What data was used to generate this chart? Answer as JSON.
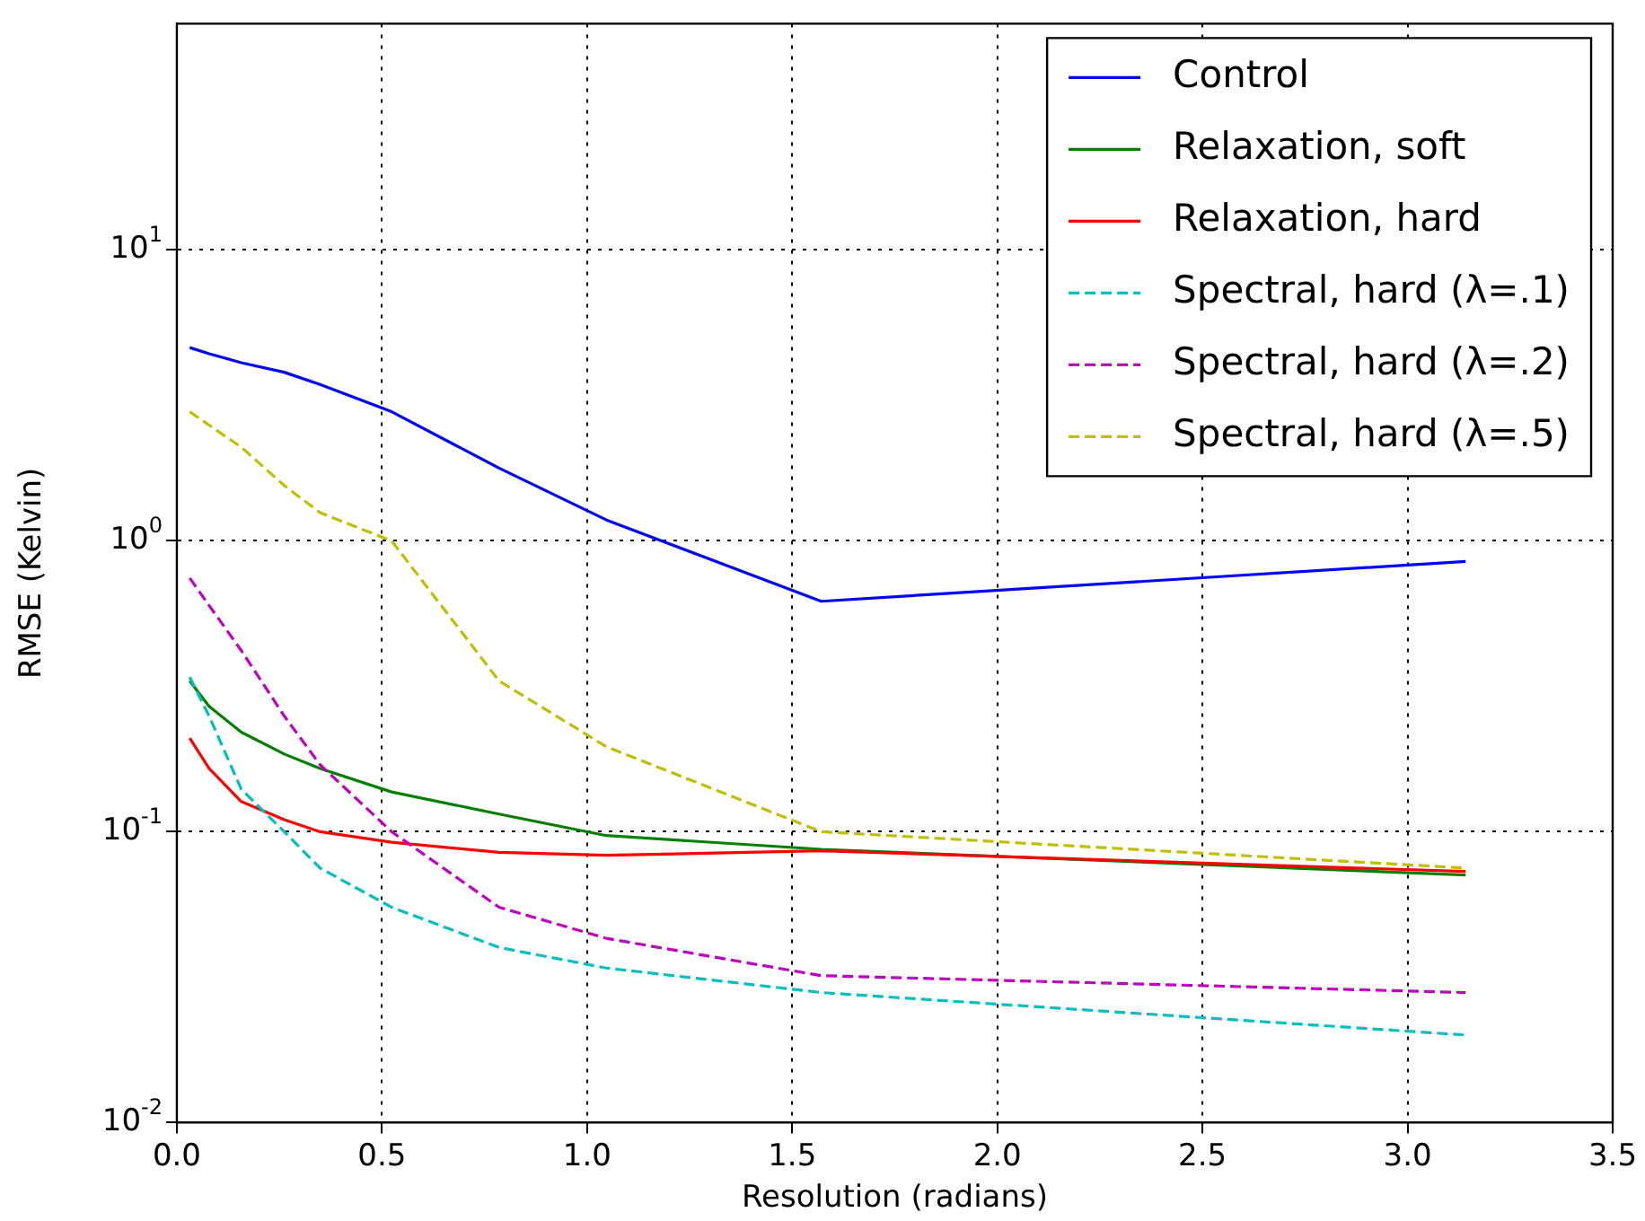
{
  "chart_data": {
    "type": "line",
    "xlabel": "Resolution (radians)",
    "ylabel": "RMSE (Kelvin)",
    "log": "y",
    "grid": true,
    "legend": "top right",
    "line_style": "solid",
    "marker": "none",
    "x": [
      0.0314,
      0.0785,
      0.157,
      0.2618,
      0.3491,
      0.5236,
      0.7854,
      1.0472,
      1.5708,
      3.1416
    ],
    "xlim": [
      0,
      3.5
    ],
    "xticks": [
      {
        "value": 0,
        "label": "0.0"
      },
      0.5,
      {
        "value": 1,
        "label": "1.0"
      },
      1.5,
      {
        "value": 2,
        "label": "2.0"
      },
      2.5,
      {
        "value": 3,
        "label": "3.0"
      },
      3.5
    ],
    "ylim": [
      0.01,
      60
    ],
    "yticks": [
      {
        "value": 0.01,
        "label": "10$^{-2}$"
      },
      {
        "value": 0.1,
        "label": "10$^{-1}$"
      },
      {
        "value": 1,
        "label": "10$^{0}$"
      },
      {
        "value": 10,
        "label": "10$^{1}$"
      }
    ],
    "series": [
      {
        "name": "Control",
        "color": "#0000ff",
        "values": [
          4.62,
          4.4,
          4.1,
          3.8,
          3.45,
          2.78,
          1.78,
          1.18,
          0.62,
          0.85
        ]
      },
      {
        "name": "Relaxation, soft",
        "color": "#008000",
        "values": [
          0.33,
          0.27,
          0.22,
          0.185,
          0.165,
          0.137,
          0.115,
          0.097,
          0.087,
          0.071
        ]
      },
      {
        "name": "Relaxation, hard",
        "color": "#ff0000",
        "values": [
          0.21,
          0.165,
          0.127,
          0.11,
          0.1,
          0.092,
          0.085,
          0.083,
          0.086,
          0.073
        ]
      },
      {
        "name": "Spectral, hard (λ=.1)",
        "color": "#00bfbf",
        "line_style": "dashed",
        "values": [
          0.34,
          0.25,
          0.14,
          0.1,
          0.075,
          0.055,
          0.04,
          0.034,
          0.028,
          0.02
        ]
      },
      {
        "name": "Spectral, hard (λ=.2)",
        "color": "#bf00bf",
        "line_style": "dashed",
        "values": [
          0.745,
          0.6,
          0.42,
          0.25,
          0.17,
          0.1,
          0.055,
          0.043,
          0.032,
          0.028
        ]
      },
      {
        "name": "Spectral, hard (λ=.5)",
        "color": "#bfbf00",
        "line_style": "dashed",
        "values": [
          2.78,
          2.5,
          2.1,
          1.55,
          1.25,
          1.0,
          0.33,
          0.196,
          0.1,
          0.075
        ]
      }
    ]
  }
}
